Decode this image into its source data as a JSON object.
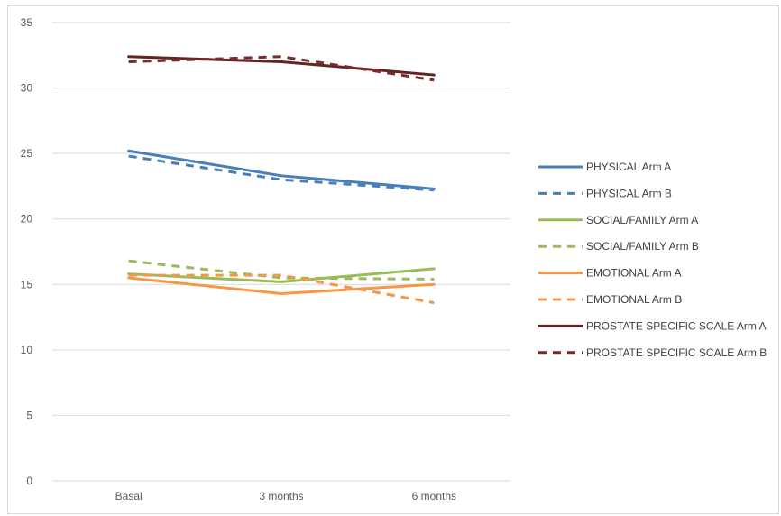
{
  "chart_data": {
    "type": "line",
    "title": "",
    "xlabel": "",
    "ylabel": "",
    "categories": [
      "Basal",
      "3 months",
      "6 months"
    ],
    "ylim": [
      0,
      35
    ],
    "yticks": [
      "0",
      "5",
      "10",
      "15",
      "20",
      "25",
      "30",
      "35"
    ],
    "grid": true,
    "legend_position": "right",
    "series": [
      {
        "name": "PHYSICAL Arm A",
        "values": [
          25.2,
          23.3,
          22.3
        ],
        "color": "#4a7ebb",
        "dashed": false
      },
      {
        "name": "PHYSICAL Arm B",
        "values": [
          24.8,
          23.0,
          22.2
        ],
        "color": "#4a7ebb",
        "dashed": true
      },
      {
        "name": "SOCIAL/FAMILY Arm A",
        "values": [
          15.8,
          15.2,
          16.2
        ],
        "color": "#9bbb59",
        "dashed": false
      },
      {
        "name": "SOCIAL/FAMILY Arm B",
        "values": [
          16.8,
          15.5,
          15.4
        ],
        "color": "#9bbb59",
        "dashed": true
      },
      {
        "name": "EMOTIONAL Arm A",
        "values": [
          15.5,
          14.3,
          15.0
        ],
        "color": "#f79646",
        "dashed": false
      },
      {
        "name": "EMOTIONAL Arm B",
        "values": [
          15.7,
          15.7,
          13.6
        ],
        "color": "#f79646",
        "dashed": true
      },
      {
        "name": "PROSTATE SPECIFIC SCALE Arm A",
        "values": [
          32.4,
          32.0,
          31.0
        ],
        "color": "#632523",
        "dashed": false
      },
      {
        "name": "PROSTATE SPECIFIC SCALE Arm B",
        "values": [
          32.0,
          32.4,
          30.6
        ],
        "color": "#7b2c2a",
        "dashed": true
      }
    ]
  }
}
